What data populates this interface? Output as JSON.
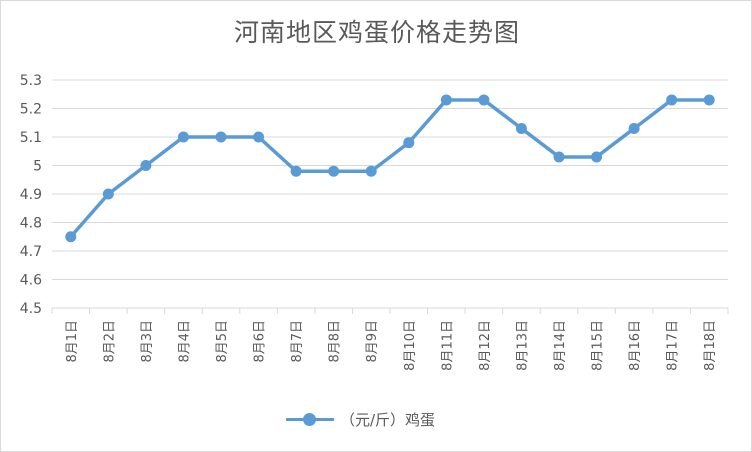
{
  "chart_data": {
    "type": "line",
    "title": "河南地区鸡蛋价格走势图",
    "categories": [
      "8月1日",
      "8月2日",
      "8月3日",
      "8月4日",
      "8月5日",
      "8月6日",
      "8月7日",
      "8月8日",
      "8月9日",
      "8月10日",
      "8月11日",
      "8月12日",
      "8月13日",
      "8月14日",
      "8月15日",
      "8月16日",
      "8月17日",
      "8月18日"
    ],
    "series": [
      {
        "name": "（元/斤）鸡蛋",
        "values": [
          4.75,
          4.9,
          5.0,
          5.1,
          5.1,
          5.1,
          4.98,
          4.98,
          4.98,
          5.08,
          5.23,
          5.23,
          5.13,
          5.03,
          5.03,
          5.13,
          5.23,
          5.23
        ]
      }
    ],
    "ylim": [
      4.5,
      5.3
    ],
    "yticks": [
      "4.5",
      "4.6",
      "4.7",
      "4.8",
      "4.9",
      "5",
      "5.1",
      "5.2",
      "5.3"
    ],
    "grid": true,
    "legend_position": "bottom",
    "colors": {
      "series": "#5b9bd5",
      "grid": "#d9d9d9",
      "text": "#595959"
    }
  }
}
